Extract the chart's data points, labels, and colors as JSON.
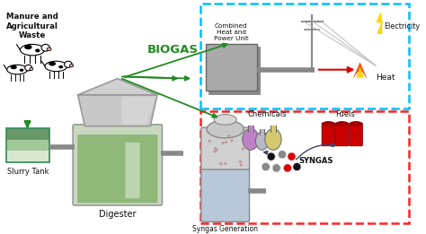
{
  "background_color": "#ffffff",
  "figsize": [
    4.74,
    2.61
  ],
  "dpi": 100,
  "labels": {
    "manure": "Manure and\nAgricultural\nWaste",
    "slurry": "Slurry Tank",
    "digester": "Digester",
    "biogas": "BIOGAS",
    "chp": "Combined\nHeat and\nPower Unit",
    "electricity": "Electricity",
    "heat": "Heat",
    "chemicals": "Chemicals",
    "fuels": "Fuels",
    "syngas": "SYNGAS",
    "syngas_gen": "Syngas Generation"
  },
  "colors": {
    "biogas_text": "#228B22",
    "dashed_blue": "#00BFFF",
    "dashed_red": "#FF2222",
    "arrow_green": "#228B22",
    "arrow_gray": "#888888",
    "arrow_red": "#DD0000",
    "digester_body": "#c8d8c0",
    "digester_green": "#90b878",
    "digester_top": "#C8C8C8",
    "digester_cone": "#D8D8D8",
    "slurry_top": "#d8e8d0",
    "slurry_mid": "#a0c898",
    "slurry_bot": "#6a9868",
    "slurry_border": "#2E8B57",
    "chp_fill": "#A0A0A0",
    "chp_pipe": "#888888",
    "reactor_top_fill": "#D0D0D0",
    "reactor_bot_fill": "#B8C8D8",
    "electricity_bolt": "#FFD700",
    "heat_orange": "#FF4500",
    "heat_yellow": "#FFD700",
    "fuels_red": "#CC0000",
    "fuels_dark": "#880000",
    "syngas_red": "#DD0000",
    "syngas_black": "#111111",
    "syngas_gray": "#888888",
    "syngas_white": "#DDDDDD",
    "flask_purple": "#C080C8",
    "flask_yellow": "#D4C870",
    "flask_neck": "#888888",
    "label_color": "#111111",
    "tower_wire": "#BBBBBB",
    "tower_body": "#888888",
    "dot_color": "#c09898"
  },
  "xlim": [
    0,
    10
  ],
  "ylim": [
    0,
    5.5
  ]
}
